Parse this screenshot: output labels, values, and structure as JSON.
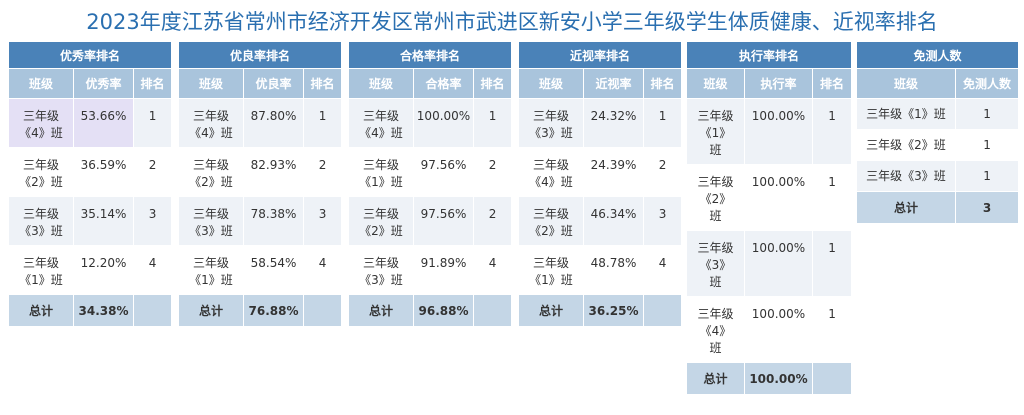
{
  "page_title": "2023年度江苏省常州市经济开发区常州市武进区新安小学三年级学生体质健康、近视率排名",
  "tables": [
    {
      "key": "excellent",
      "title": "优秀率排名",
      "col_class": "班级",
      "col_value": "优秀率",
      "col_rank": "排名",
      "rows": [
        {
          "class_a": "三年级",
          "class_b": "《4》班",
          "value": "53.66%",
          "rank": "1"
        },
        {
          "class_a": "三年级",
          "class_b": "《2》班",
          "value": "36.59%",
          "rank": "2"
        },
        {
          "class_a": "三年级",
          "class_b": "《3》班",
          "value": "35.14%",
          "rank": "3"
        },
        {
          "class_a": "三年级",
          "class_b": "《1》班",
          "value": "12.20%",
          "rank": "4"
        }
      ],
      "total_label": "总计",
      "total_value": "34.38%"
    },
    {
      "key": "good",
      "title": "优良率排名",
      "col_class": "班级",
      "col_value": "优良率",
      "col_rank": "排名",
      "rows": [
        {
          "class_a": "三年级",
          "class_b": "《4》班",
          "value": "87.80%",
          "rank": "1"
        },
        {
          "class_a": "三年级",
          "class_b": "《2》班",
          "value": "82.93%",
          "rank": "2"
        },
        {
          "class_a": "三年级",
          "class_b": "《3》班",
          "value": "78.38%",
          "rank": "3"
        },
        {
          "class_a": "三年级",
          "class_b": "《1》班",
          "value": "58.54%",
          "rank": "4"
        }
      ],
      "total_label": "总计",
      "total_value": "76.88%"
    },
    {
      "key": "pass",
      "title": "合格率排名",
      "col_class": "班级",
      "col_value": "合格率",
      "col_rank": "排名",
      "rows": [
        {
          "class_a": "三年级",
          "class_b": "《4》班",
          "value": "100.00%",
          "rank": "1"
        },
        {
          "class_a": "三年级",
          "class_b": "《1》班",
          "value": "97.56%",
          "rank": "2"
        },
        {
          "class_a": "三年级",
          "class_b": "《2》班",
          "value": "97.56%",
          "rank": "2"
        },
        {
          "class_a": "三年级",
          "class_b": "《3》班",
          "value": "91.89%",
          "rank": "4"
        }
      ],
      "total_label": "总计",
      "total_value": "96.88%"
    },
    {
      "key": "myopia",
      "title": "近视率排名",
      "col_class": "班级",
      "col_value": "近视率",
      "col_rank": "排名",
      "rows": [
        {
          "class_a": "三年级",
          "class_b": "《3》班",
          "value": "24.32%",
          "rank": "1"
        },
        {
          "class_a": "三年级",
          "class_b": "《4》班",
          "value": "24.39%",
          "rank": "2"
        },
        {
          "class_a": "三年级",
          "class_b": "《2》班",
          "value": "46.34%",
          "rank": "3"
        },
        {
          "class_a": "三年级",
          "class_b": "《1》班",
          "value": "48.78%",
          "rank": "4"
        }
      ],
      "total_label": "总计",
      "total_value": "36.25%"
    },
    {
      "key": "execution",
      "title": "执行率排名",
      "col_class": "班级",
      "col_value": "执行率",
      "col_rank": "排名",
      "rows": [
        {
          "class_a": "三年级",
          "class_b": "《1》",
          "class_c": "班",
          "value": "100.00%",
          "rank": "1"
        },
        {
          "class_a": "三年级",
          "class_b": "《2》",
          "class_c": "班",
          "value": "100.00%",
          "rank": "1"
        },
        {
          "class_a": "三年级",
          "class_b": "《3》",
          "class_c": "班",
          "value": "100.00%",
          "rank": "1"
        },
        {
          "class_a": "三年级",
          "class_b": "《4》",
          "class_c": "班",
          "value": "100.00%",
          "rank": "1"
        }
      ],
      "total_label": "总计",
      "total_value": "100.00%"
    },
    {
      "key": "exempt",
      "title": "免测人数",
      "col_class": "班级",
      "col_value": "免测人数",
      "rows": [
        {
          "class_a": "三年级《1》班",
          "value": "1"
        },
        {
          "class_a": "三年级《2》班",
          "value": "1"
        },
        {
          "class_a": "三年级《3》班",
          "value": "1"
        }
      ],
      "total_label": "总计",
      "total_value": "3"
    }
  ]
}
